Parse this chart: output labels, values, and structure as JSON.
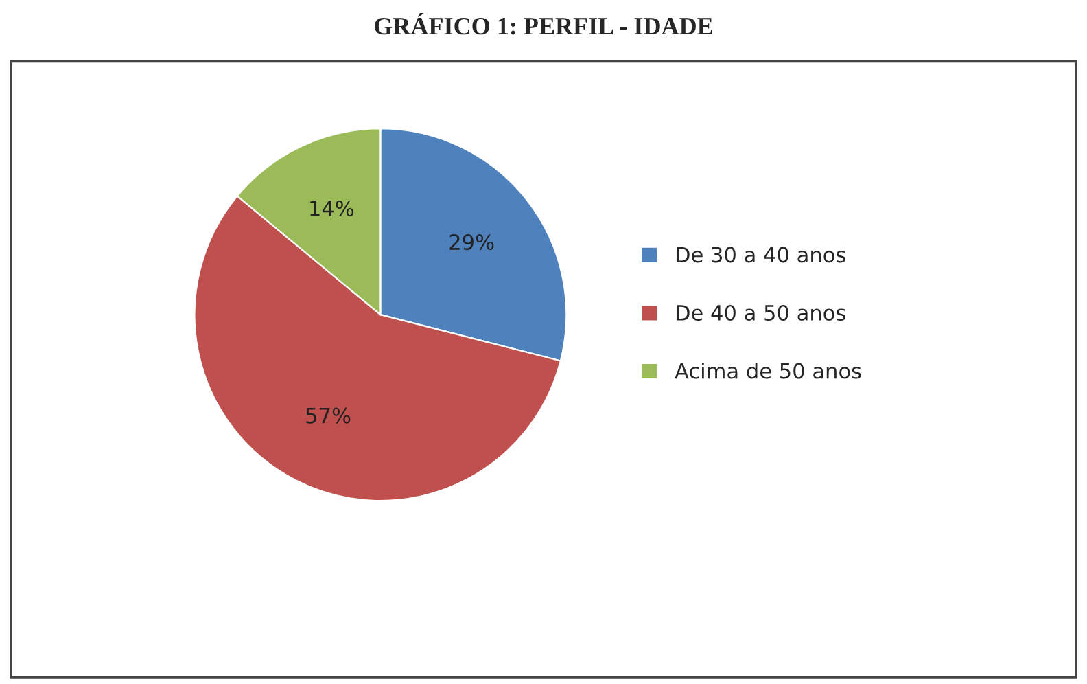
{
  "chart_data": {
    "type": "pie",
    "title": "GRÁFICO 1: PERFIL - IDADE",
    "categories": [
      "De 30 a 40 anos",
      "De 40 a 50 anos",
      "Acima de 50 anos"
    ],
    "values": [
      29,
      57,
      14
    ],
    "colors": [
      "#4f81bd",
      "#c0504d",
      "#9bbb59"
    ],
    "value_labels": [
      "29%",
      "57%",
      "14%"
    ],
    "legend": "right"
  }
}
